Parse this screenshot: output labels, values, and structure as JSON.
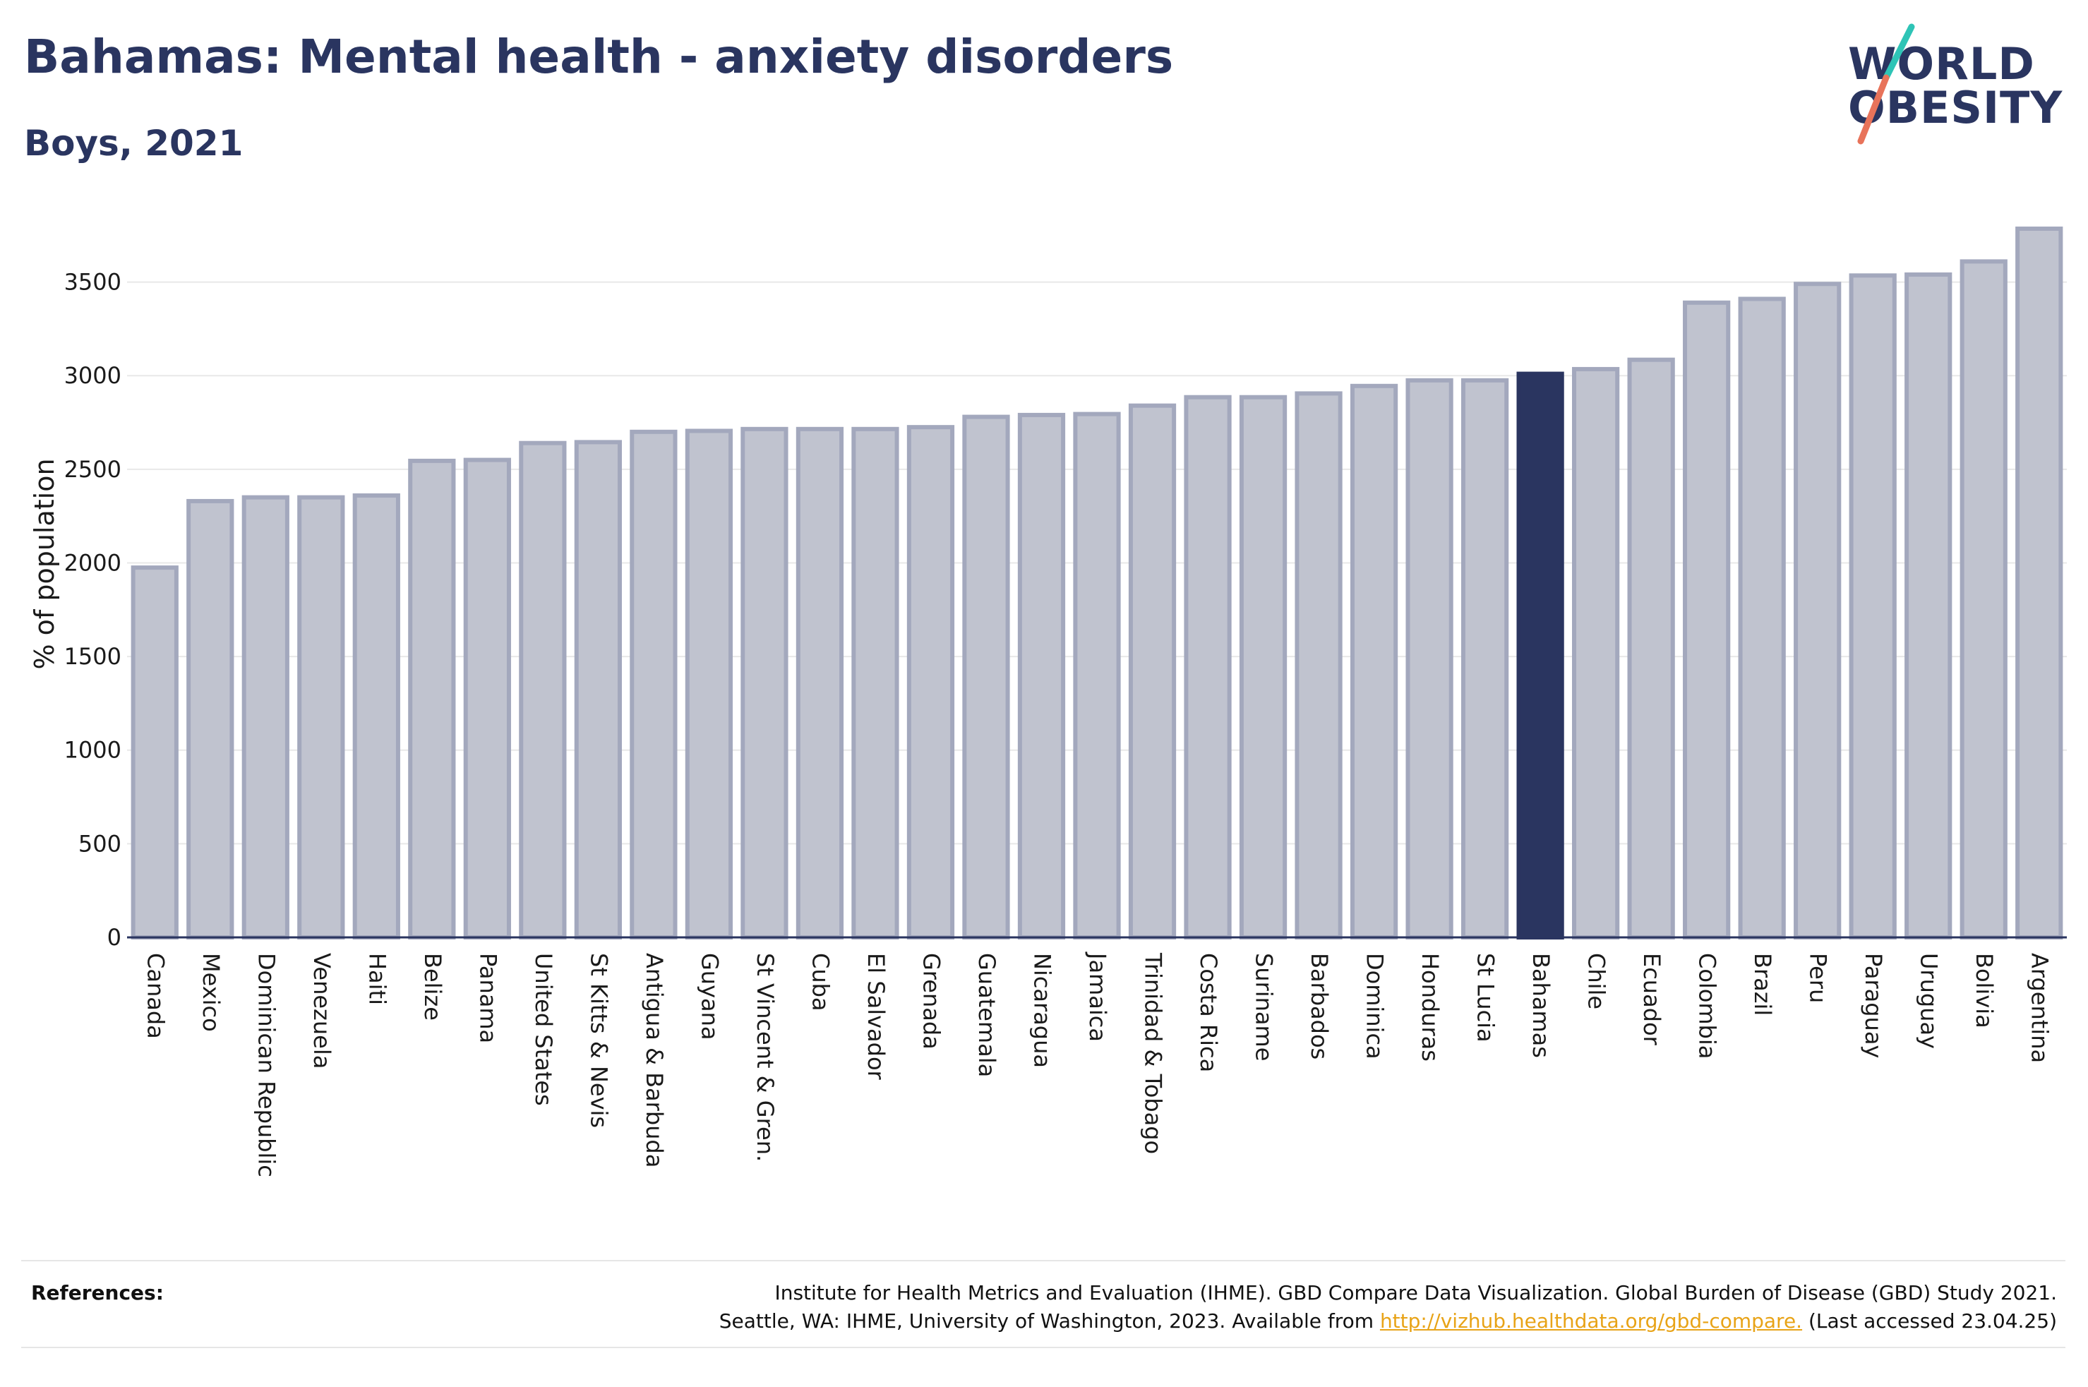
{
  "header": {
    "title": "Bahamas: Mental health - anxiety disorders",
    "subtitle": "Boys, 2021"
  },
  "logo": {
    "line1": "WORLD",
    "line2": "OBESITY",
    "slash_colors": [
      "#2ec4b6",
      "#e8735a"
    ]
  },
  "colors": {
    "bar_fill": "#c0c3cf",
    "bar_stroke": "#a3a8bd",
    "highlight": "#2a3560",
    "grid": "#e8e8e8",
    "axis": "#2a3560"
  },
  "chart_data": {
    "type": "bar",
    "title": "",
    "xlabel": "",
    "ylabel": "% of population",
    "ylim": [
      0,
      3800
    ],
    "yticks": [
      0,
      500,
      1000,
      1500,
      2000,
      2500,
      3000,
      3500
    ],
    "grid": true,
    "highlight_category": "Bahamas",
    "categories": [
      "Canada",
      "Mexico",
      "Dominican Republic",
      "Venezuela",
      "Haiti",
      "Belize",
      "Panama",
      "United States",
      "St Kitts & Nevis",
      "Antigua & Barbuda",
      "Guyana",
      "St Vincent & Gren.",
      "Cuba",
      "El Salvador",
      "Grenada",
      "Guatemala",
      "Nicaragua",
      "Jamaica",
      "Trinidad & Tobago",
      "Costa Rica",
      "Suriname",
      "Barbados",
      "Dominica",
      "Honduras",
      "St Lucia",
      "Bahamas",
      "Chile",
      "Ecuador",
      "Colombia",
      "Brazil",
      "Peru",
      "Paraguay",
      "Uruguay",
      "Bolivia",
      "Argentina"
    ],
    "values": [
      1975,
      2330,
      2350,
      2350,
      2360,
      2545,
      2550,
      2640,
      2645,
      2700,
      2705,
      2715,
      2715,
      2715,
      2725,
      2780,
      2790,
      2795,
      2840,
      2885,
      2885,
      2905,
      2945,
      2975,
      2975,
      3010,
      3035,
      3085,
      3390,
      3410,
      3490,
      3535,
      3540,
      3610,
      3785
    ]
  },
  "references": {
    "label": "References:",
    "line1": "Institute for Health Metrics and Evaluation (IHME). GBD Compare Data Visualization. Global Burden of Disease (GBD) Study 2021.",
    "line2_prefix": "Seattle, WA: IHME, University of Washington, 2023. Available from ",
    "link": "http://vizhub.healthdata.org/gbd-compare.",
    "line2_suffix": " (Last accessed 23.04.25)"
  }
}
